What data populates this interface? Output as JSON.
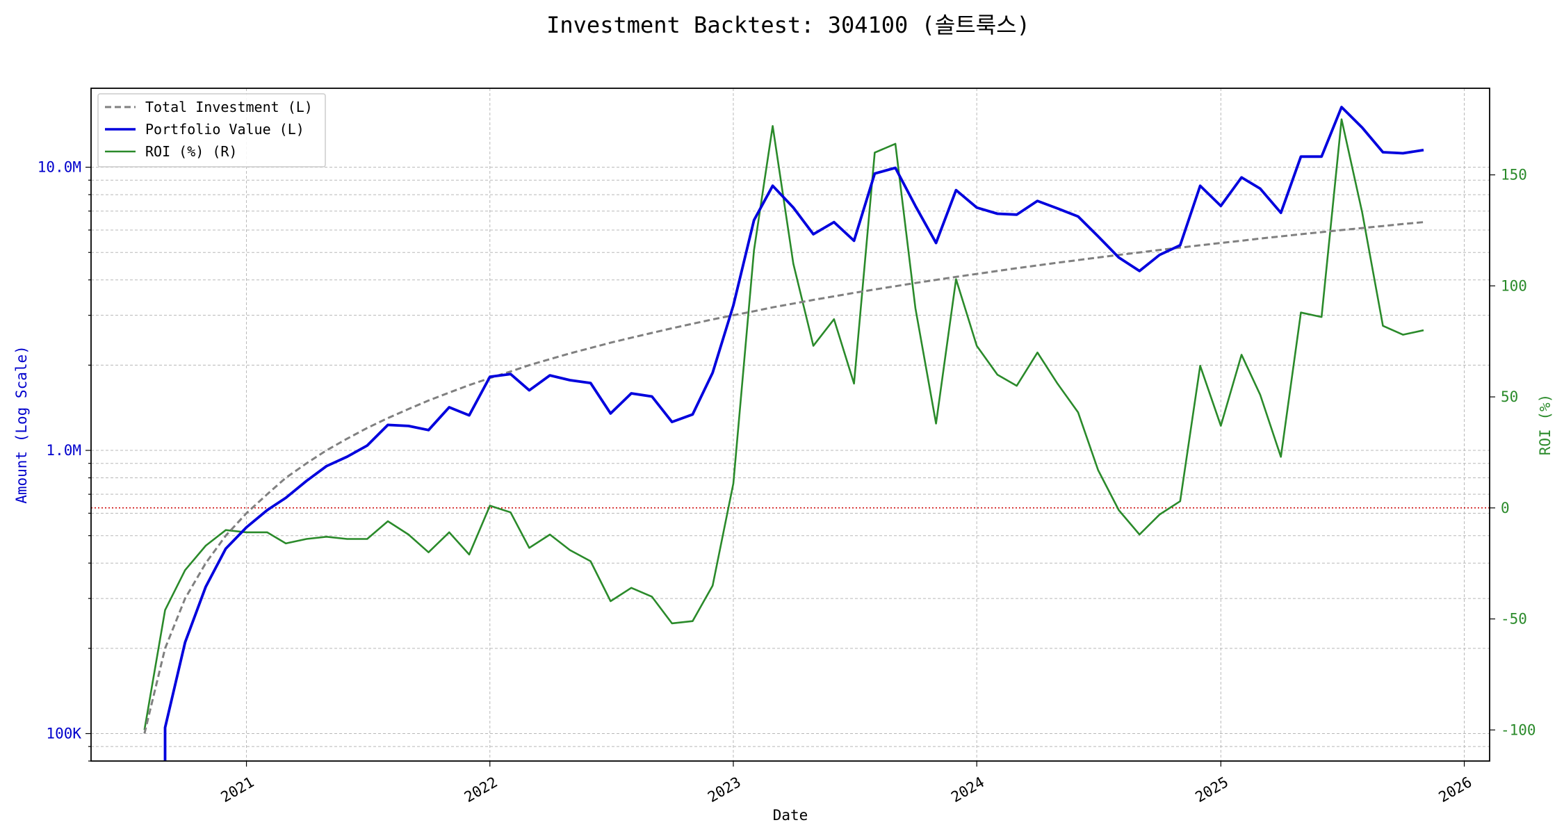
{
  "chart_data": {
    "type": "line",
    "title": "Investment Backtest: 304100 (솔트룩스)",
    "xlabel": "Date",
    "ylabel_left": "Amount (Log Scale)",
    "ylabel_right": "ROI (%)",
    "x_ticks": [
      "2021",
      "2022",
      "2023",
      "2024",
      "2025",
      "2026"
    ],
    "y_left_ticks": [
      "100K",
      "1.0M",
      "10.0M"
    ],
    "y_right_ticks": [
      "-100",
      "-50",
      "0",
      "50",
      "100",
      "150"
    ],
    "y_left_scale": "log",
    "y_left_lim": [
      80000,
      19000000
    ],
    "y_right_lim": [
      -114,
      189
    ],
    "x_lim": [
      "2020-05-13",
      "2026-02-08"
    ],
    "grid": true,
    "legend_position": "top-left",
    "colors": {
      "total_investment": "#808080",
      "portfolio_value": "#0000dd",
      "roi": "#2a8a2a",
      "zero_line": "#cc0000"
    },
    "legend": [
      "Total Investment (L)",
      "Portfolio Value (L)",
      "ROI (%) (R)"
    ],
    "dates": [
      "2020-08-01",
      "2020-09-01",
      "2020-10-01",
      "2020-11-01",
      "2020-12-01",
      "2021-01-01",
      "2021-02-01",
      "2021-03-01",
      "2021-04-01",
      "2021-05-01",
      "2021-06-01",
      "2021-07-01",
      "2021-08-01",
      "2021-09-01",
      "2021-10-01",
      "2021-11-01",
      "2021-12-01",
      "2022-01-01",
      "2022-02-01",
      "2022-03-01",
      "2022-04-01",
      "2022-05-01",
      "2022-06-01",
      "2022-07-01",
      "2022-08-01",
      "2022-09-01",
      "2022-10-01",
      "2022-11-01",
      "2022-12-01",
      "2023-01-01",
      "2023-02-01",
      "2023-03-01",
      "2023-04-01",
      "2023-05-01",
      "2023-06-01",
      "2023-07-01",
      "2023-08-01",
      "2023-09-01",
      "2023-10-01",
      "2023-11-01",
      "2023-12-01",
      "2024-01-01",
      "2024-02-01",
      "2024-03-01",
      "2024-04-01",
      "2024-05-01",
      "2024-06-01",
      "2024-07-01",
      "2024-08-01",
      "2024-09-01",
      "2024-10-01",
      "2024-11-01",
      "2024-12-01",
      "2025-01-01",
      "2025-02-01",
      "2025-03-01",
      "2025-04-01",
      "2025-05-01",
      "2025-06-01",
      "2025-07-01",
      "2025-08-01",
      "2025-09-01",
      "2025-10-01",
      "2025-11-01"
    ],
    "series": [
      {
        "name": "Total Investment (L)",
        "values": [
          100000,
          200000,
          300000,
          400000,
          500000,
          600000,
          700000,
          800000,
          900000,
          1000000,
          1100000,
          1200000,
          1300000,
          1400000,
          1500000,
          1600000,
          1700000,
          1800000,
          1900000,
          2000000,
          2100000,
          2200000,
          2300000,
          2400000,
          2500000,
          2600000,
          2700000,
          2800000,
          2900000,
          3000000,
          3100000,
          3200000,
          3300000,
          3400000,
          3500000,
          3600000,
          3700000,
          3800000,
          3900000,
          4000000,
          4100000,
          4200000,
          4300000,
          4400000,
          4500000,
          4600000,
          4700000,
          4800000,
          4900000,
          5000000,
          5100000,
          5200000,
          5300000,
          5400000,
          5500000,
          5600000,
          5700000,
          5800000,
          5900000,
          6000000,
          6100000,
          6200000,
          6300000,
          6400000
        ]
      },
      {
        "name": "Portfolio Value (L)",
        "values": [
          null,
          105000,
          210000,
          330000,
          450000,
          535000,
          615000,
          680000,
          780000,
          880000,
          950000,
          1040000,
          1230000,
          1220000,
          1180000,
          1420000,
          1330000,
          1820000,
          1860000,
          1630000,
          1840000,
          1770000,
          1730000,
          1350000,
          1590000,
          1550000,
          1260000,
          1340000,
          1880000,
          3250000,
          6500000,
          8600000,
          7200000,
          5800000,
          6400000,
          5500000,
          9500000,
          9950000,
          7300000,
          5400000,
          8300000,
          7200000,
          6850000,
          6800000,
          7600000,
          7150000,
          6700000,
          5700000,
          4800000,
          4300000,
          4900000,
          5300000,
          8600000,
          7300000,
          9200000,
          8400000,
          6900000,
          10900000,
          10900000,
          16300000,
          13800000,
          11300000,
          11200000,
          11500000
        ]
      },
      {
        "name": "ROI (%) (R)",
        "values": [
          -100,
          -46,
          -28,
          -17,
          -10,
          -11,
          -11,
          -16,
          -14,
          -13,
          -14,
          -14,
          -6,
          -12,
          -20,
          -11,
          -21,
          1,
          -2,
          -18,
          -12,
          -19,
          -24,
          -42,
          -36,
          -40,
          -52,
          -51,
          -35,
          11,
          116,
          172,
          110,
          73,
          85,
          56,
          160,
          164,
          90,
          38,
          103,
          73,
          60,
          55,
          70,
          56,
          43,
          17,
          -1,
          -12,
          -3,
          3,
          64,
          37,
          69,
          51,
          23,
          88,
          86,
          175,
          133,
          82,
          78,
          80
        ]
      }
    ]
  }
}
